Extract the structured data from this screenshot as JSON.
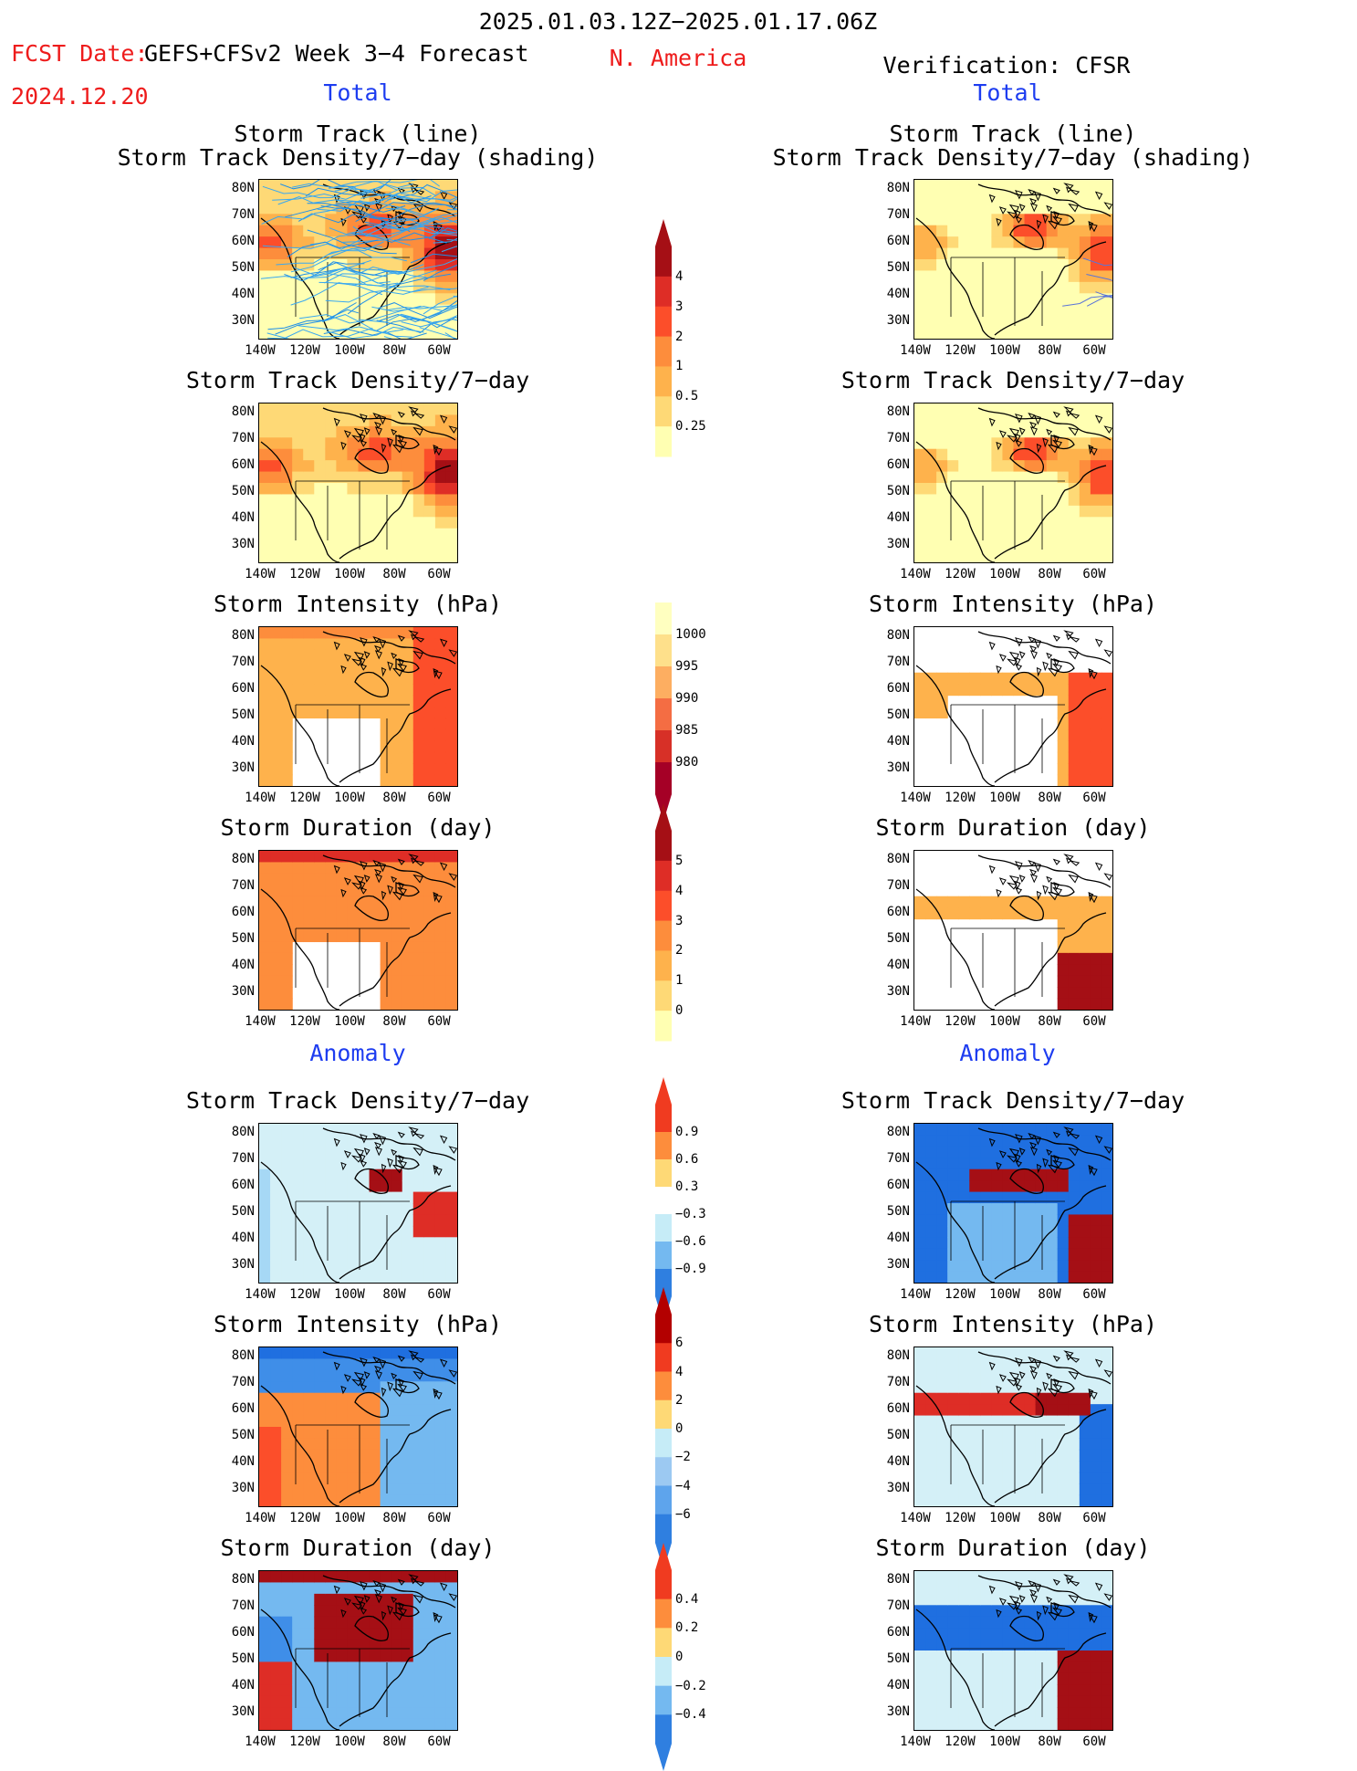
{
  "header": {
    "period": "2025.01.03.12Z−2025.01.17.06Z",
    "fcst_label": "FCST Date:",
    "fcst_source": "GEFS+CFSv2 Week 3−4 Forecast",
    "fcst_date": "2024.12.20",
    "region": "N. America",
    "verification": "Verification: CFSR"
  },
  "sections": {
    "total": "Total",
    "anomaly": "Anomaly"
  },
  "axes": {
    "lat_labels": [
      "80N",
      "70N",
      "60N",
      "50N",
      "40N",
      "30N"
    ],
    "lon_labels": [
      "140W",
      "120W",
      "100W",
      "80W",
      "60W"
    ]
  },
  "panel_titles": {
    "track_line": "Storm Track (line)",
    "track_shading": "Storm Track Density/7−day (shading)",
    "density": "Storm Track Density/7−day",
    "intensity": "Storm Intensity (hPa)",
    "duration": "Storm Duration (day)"
  },
  "colorbars": {
    "density_total": {
      "labels": [
        "4",
        "3",
        "2",
        "1",
        "0.5",
        "0.25"
      ],
      "colors": [
        "#a50f15",
        "#de2d26",
        "#fc4e2a",
        "#fd8d3c",
        "#feb24c",
        "#fed976",
        "#ffffb2"
      ]
    },
    "intensity_total": {
      "labels": [
        "1000",
        "995",
        "990",
        "985",
        "980"
      ],
      "colors": [
        "#ffffc0",
        "#fee08b",
        "#fdae61",
        "#f46d43",
        "#d73027",
        "#a50026"
      ]
    },
    "duration_total": {
      "labels": [
        "5",
        "4",
        "3",
        "2",
        "1",
        "0"
      ],
      "colors": [
        "#a50f15",
        "#de2d26",
        "#fc4e2a",
        "#fd8d3c",
        "#feb24c",
        "#fed976",
        "#ffffb2"
      ]
    },
    "density_anom": {
      "labels": [
        "0.9",
        "0.6",
        "0.3",
        "−0.3",
        "−0.6",
        "−0.9"
      ],
      "colors": [
        "#f03b20",
        "#fd8d3c",
        "#fed976",
        "#ffffff",
        "#c6ecf7",
        "#74b9f0",
        "#2f7fe0"
      ]
    },
    "intensity_anom": {
      "labels": [
        "6",
        "4",
        "2",
        "0",
        "−2",
        "−4",
        "−6"
      ],
      "colors": [
        "#b30000",
        "#f03b20",
        "#fd8d3c",
        "#fed976",
        "#c6ecf7",
        "#9cc9f2",
        "#5ea4ec",
        "#2f7fe0"
      ]
    },
    "duration_anom": {
      "labels": [
        "0.4",
        "0.2",
        "0",
        "−0.2",
        "−0.4"
      ],
      "colors": [
        "#f03b20",
        "#fd8d3c",
        "#fed976",
        "#c6ecf7",
        "#74b9f0",
        "#2f7fe0"
      ]
    }
  }
}
